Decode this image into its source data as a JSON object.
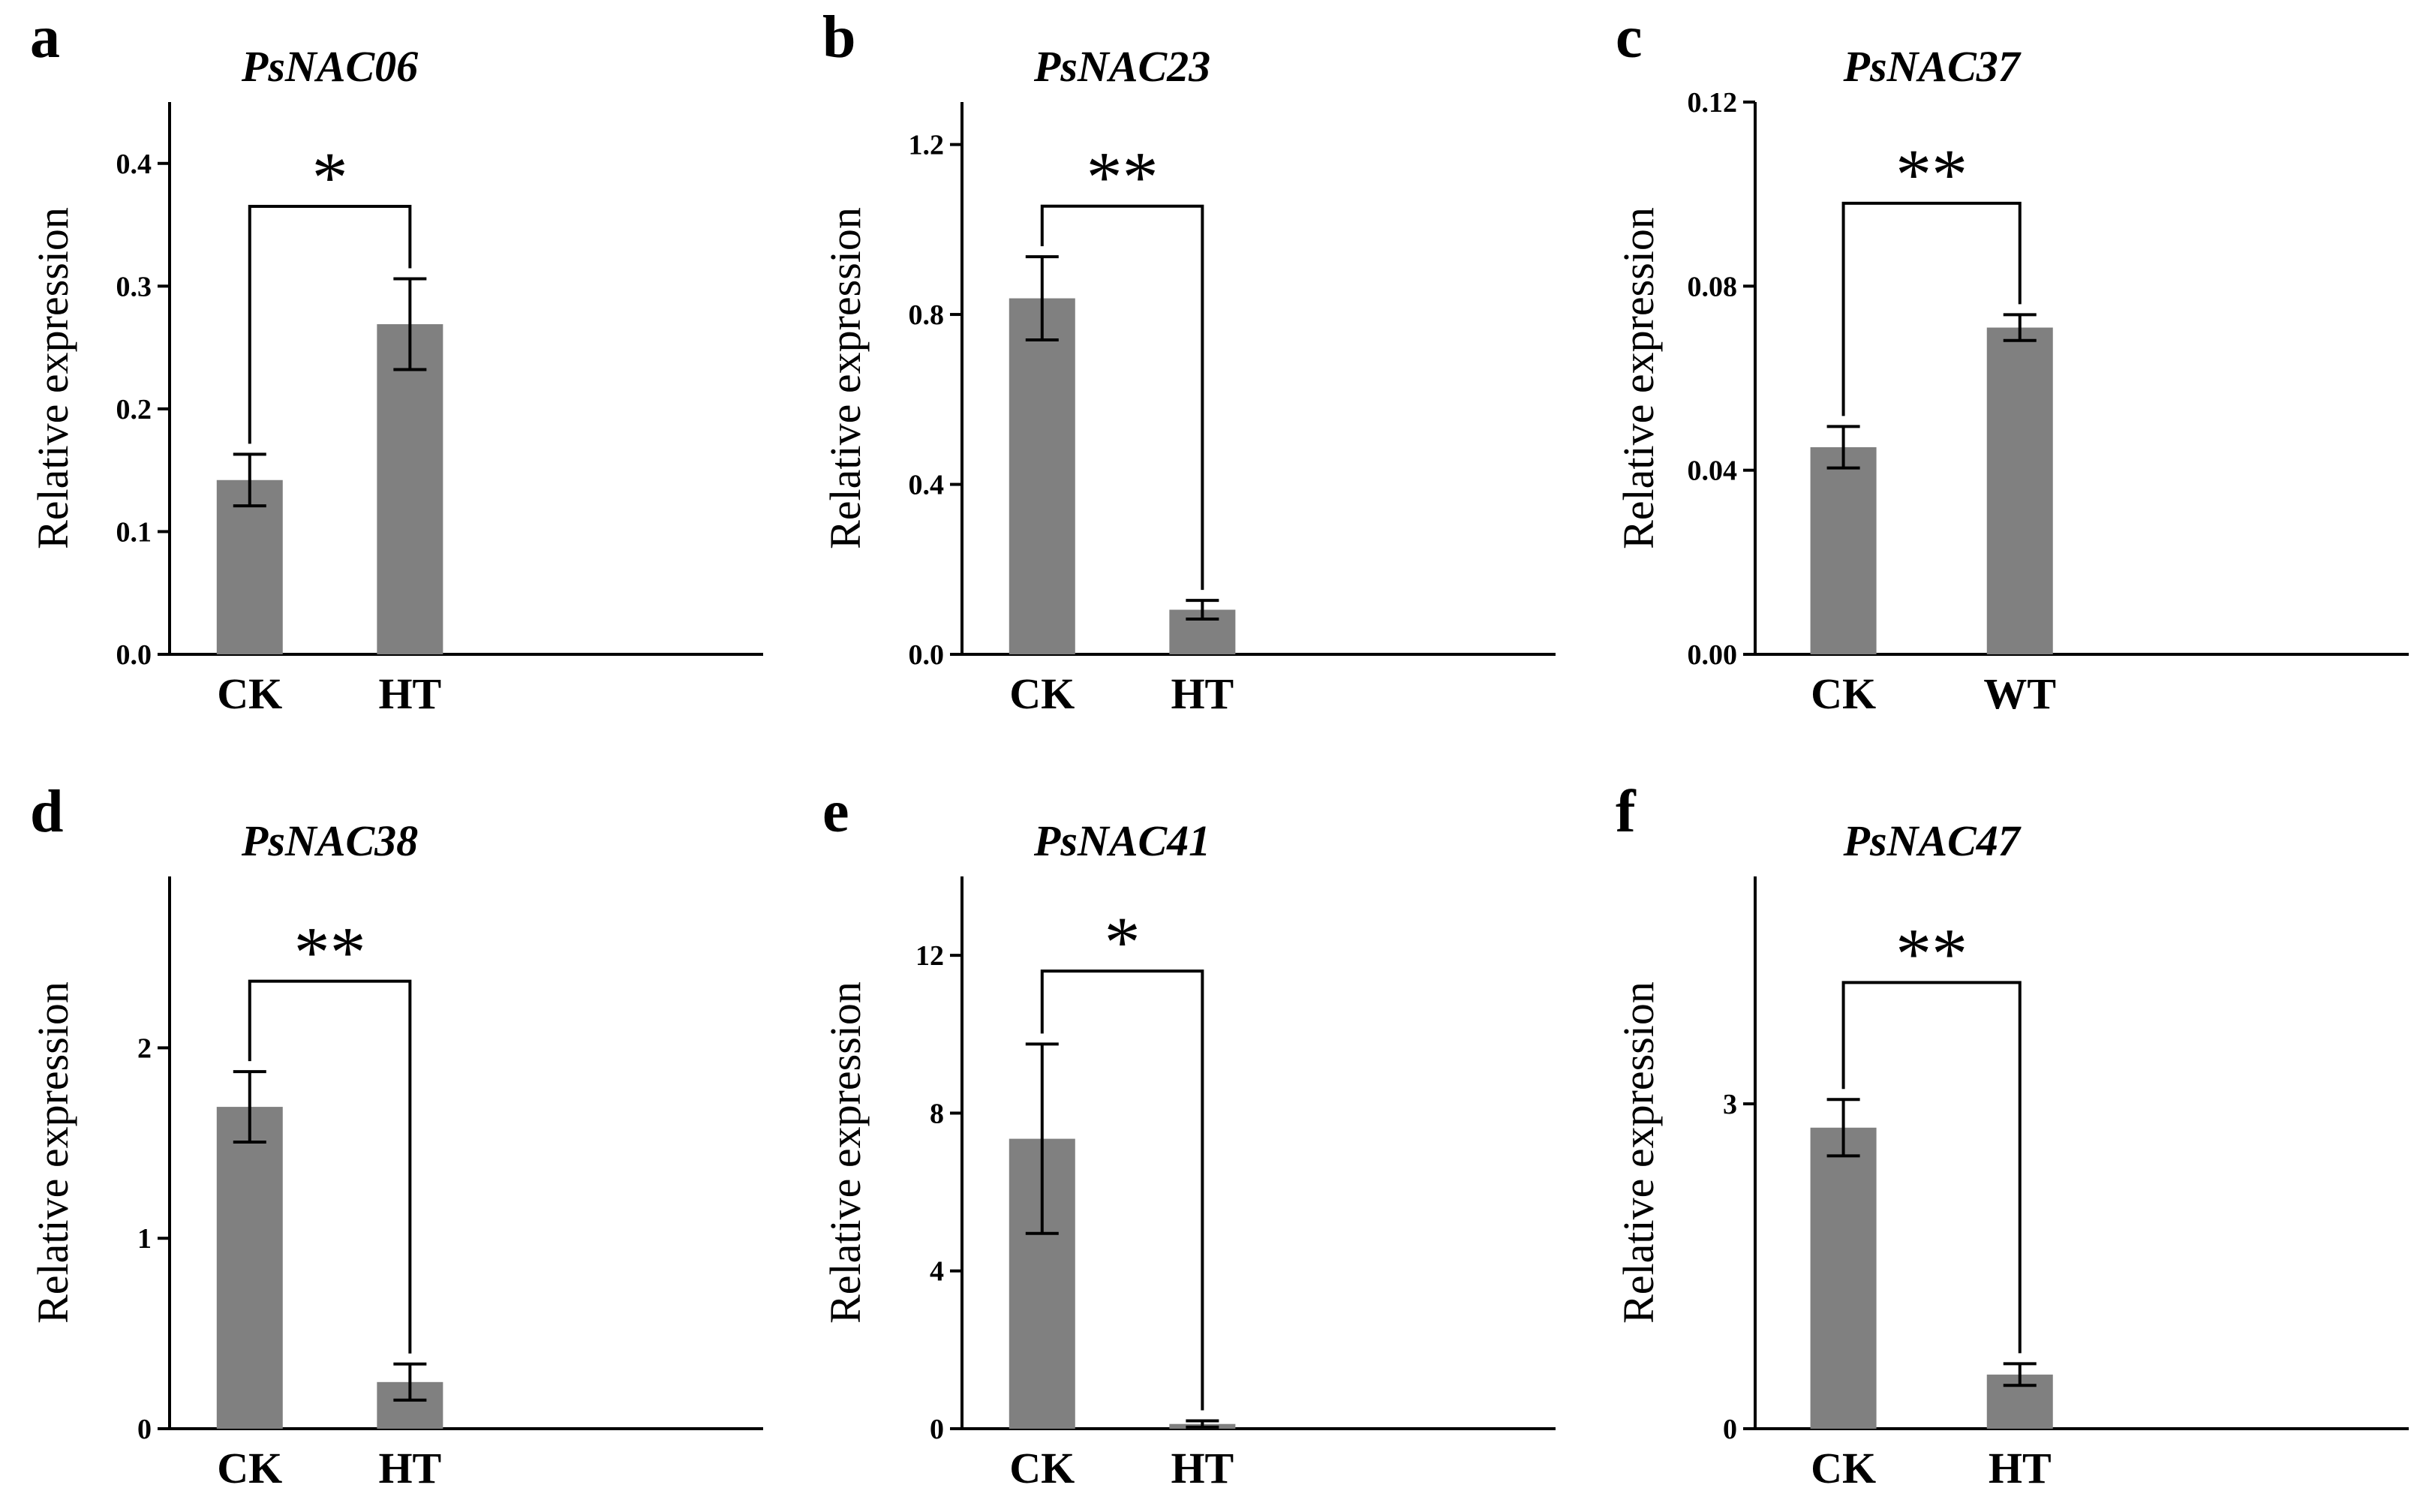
{
  "figure": {
    "bar_color": "#808080",
    "axis_color": "#000000"
  },
  "chart_data": [
    {
      "panel": "a",
      "type": "bar",
      "title": "PsNAC06",
      "xlabel": "",
      "ylabel": "Relative expression",
      "categories": [
        "CK",
        "HT"
      ],
      "values": [
        0.142,
        0.269
      ],
      "errors": [
        0.021,
        0.037
      ],
      "ylim": [
        0,
        0.45
      ],
      "yticks": [
        0.0,
        0.1,
        0.2,
        0.3,
        0.4
      ],
      "ytick_labels": [
        "0.0",
        "0.1",
        "0.2",
        "0.3",
        "0.4"
      ],
      "significance": "*",
      "bracket_y": 0.365
    },
    {
      "panel": "b",
      "type": "bar",
      "title": "PsNAC23",
      "xlabel": "",
      "ylabel": "Relative expression",
      "categories": [
        "CK",
        "HT"
      ],
      "values": [
        0.838,
        0.105
      ],
      "errors": [
        0.098,
        0.022
      ],
      "ylim": [
        0,
        1.3
      ],
      "yticks": [
        0.0,
        0.4,
        0.8,
        1.2
      ],
      "ytick_labels": [
        "0.0",
        "0.4",
        "0.8",
        "1.2"
      ],
      "significance": "**",
      "bracket_y": 1.055
    },
    {
      "panel": "c",
      "type": "bar",
      "title": "PsNAC37",
      "xlabel": "",
      "ylabel": "Relative expression",
      "categories": [
        "CK",
        "WT"
      ],
      "values": [
        0.045,
        0.071
      ],
      "errors": [
        0.0045,
        0.0028
      ],
      "ylim": [
        0,
        0.12
      ],
      "yticks": [
        0.0,
        0.04,
        0.08,
        0.12
      ],
      "ytick_labels": [
        "0.00",
        "0.04",
        "0.08",
        "0.12"
      ],
      "significance": "**",
      "bracket_y": 0.098
    },
    {
      "panel": "d",
      "type": "bar",
      "title": "PsNAC38",
      "xlabel": "",
      "ylabel": "Relative expression",
      "categories": [
        "CK",
        "HT"
      ],
      "values": [
        1.69,
        0.245
      ],
      "errors": [
        0.185,
        0.095
      ],
      "ylim": [
        0,
        2.9
      ],
      "yticks": [
        0,
        1,
        2
      ],
      "ytick_labels": [
        "0",
        "1",
        "2"
      ],
      "significance": "**",
      "bracket_y": 2.35
    },
    {
      "panel": "e",
      "type": "bar",
      "title": "PsNAC41",
      "xlabel": "",
      "ylabel": "Relative expression",
      "categories": [
        "CK",
        "HT"
      ],
      "values": [
        7.35,
        0.12
      ],
      "errors": [
        2.4,
        0.08
      ],
      "ylim": [
        0,
        14
      ],
      "yticks": [
        0,
        4,
        8,
        12
      ],
      "ytick_labels": [
        "0",
        "4",
        "8",
        "12"
      ],
      "significance": "*",
      "bracket_y": 11.6
    },
    {
      "panel": "f",
      "type": "bar",
      "title": "PsNAC47",
      "xlabel": "",
      "ylabel": "Relative expression",
      "categories": [
        "CK",
        "HT"
      ],
      "values": [
        2.78,
        0.5
      ],
      "errors": [
        0.26,
        0.1
      ],
      "ylim": [
        0,
        5.1
      ],
      "yticks": [
        0,
        3
      ],
      "ytick_labels": [
        "0",
        "3"
      ],
      "significance": "**",
      "bracket_y": 4.12
    }
  ]
}
